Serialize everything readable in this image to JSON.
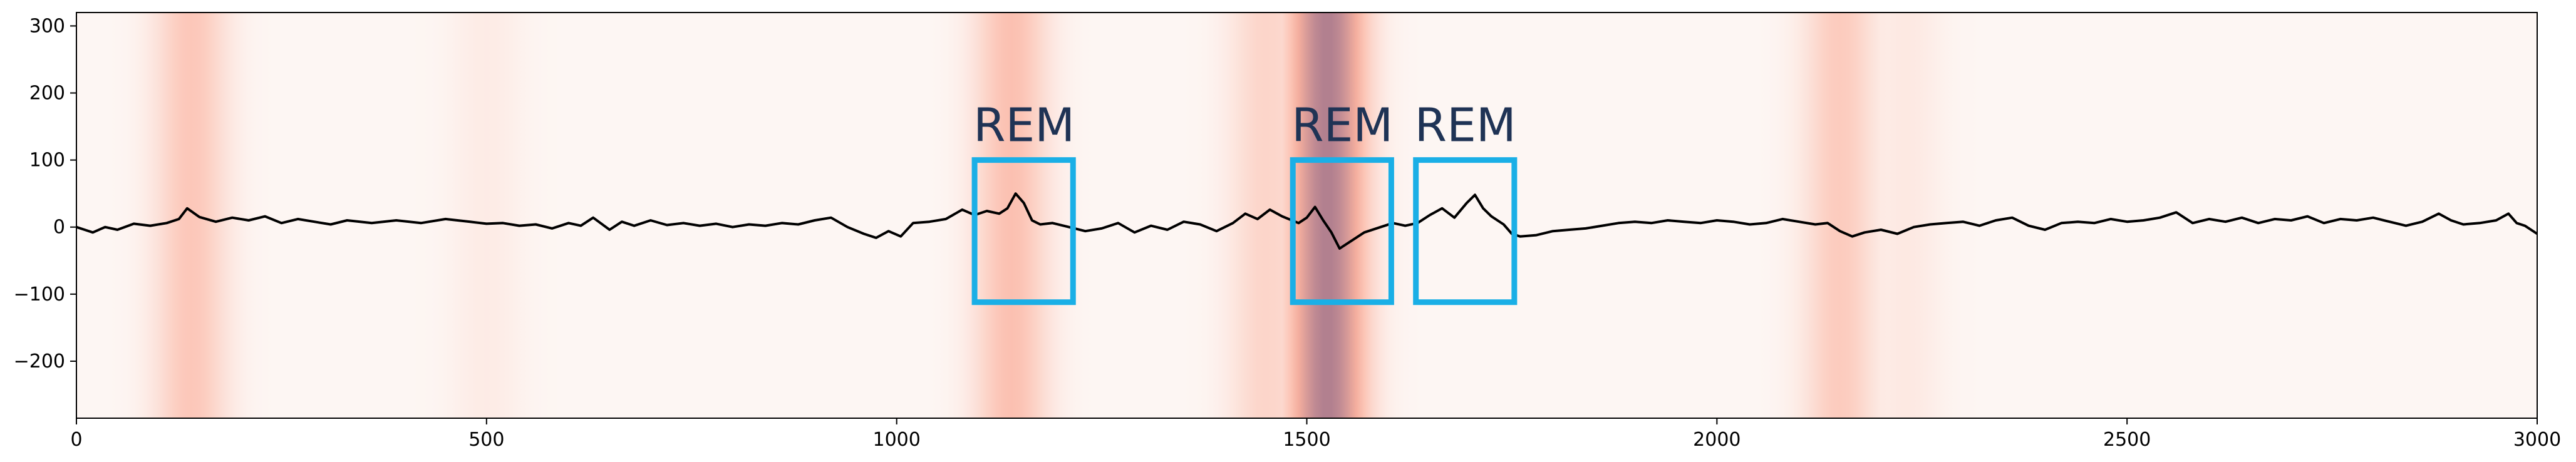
{
  "chart_data": {
    "type": "line",
    "title": "",
    "xlabel": "",
    "ylabel": "",
    "xlim": [
      0,
      3000
    ],
    "ylim": [
      -285,
      320
    ],
    "x_ticks": [
      0,
      500,
      1000,
      1500,
      2000,
      2500,
      3000
    ],
    "y_ticks": [
      300,
      200,
      100,
      0,
      -100,
      -200
    ],
    "grid": false,
    "colors": {
      "signal": "#000000",
      "box": "#1aafe6",
      "annotation_text": "#1f3355",
      "heat_base": "#fdf6f3",
      "heat_mid": "#fbb3a0",
      "heat_high": "#b07f8f"
    },
    "heatmap_background": {
      "colormap": "Reds",
      "bands": [
        {
          "x": 140,
          "intensity": 0.35
        },
        {
          "x": 500,
          "intensity": 0.08
        },
        {
          "x": 1140,
          "intensity": 0.4
        },
        {
          "x": 1450,
          "intensity": 0.25
        },
        {
          "x": 1525,
          "intensity": 1.0
        },
        {
          "x": 2150,
          "intensity": 0.32
        },
        {
          "x": 2230,
          "intensity": 0.1
        }
      ]
    },
    "series": [
      {
        "points": [
          [
            0,
            0
          ],
          [
            10,
            -4
          ],
          [
            20,
            -8
          ],
          [
            35,
            0
          ],
          [
            50,
            -4
          ],
          [
            70,
            5
          ],
          [
            90,
            2
          ],
          [
            110,
            6
          ],
          [
            125,
            12
          ],
          [
            135,
            28
          ],
          [
            150,
            15
          ],
          [
            170,
            8
          ],
          [
            190,
            14
          ],
          [
            210,
            10
          ],
          [
            230,
            16
          ],
          [
            250,
            6
          ],
          [
            270,
            12
          ],
          [
            290,
            8
          ],
          [
            310,
            4
          ],
          [
            330,
            10
          ],
          [
            360,
            6
          ],
          [
            390,
            10
          ],
          [
            420,
            6
          ],
          [
            450,
            12
          ],
          [
            480,
            8
          ],
          [
            500,
            5
          ],
          [
            520,
            6
          ],
          [
            540,
            2
          ],
          [
            560,
            4
          ],
          [
            580,
            -2
          ],
          [
            600,
            6
          ],
          [
            615,
            2
          ],
          [
            630,
            14
          ],
          [
            650,
            -4
          ],
          [
            665,
            8
          ],
          [
            680,
            2
          ],
          [
            700,
            10
          ],
          [
            720,
            3
          ],
          [
            740,
            6
          ],
          [
            760,
            2
          ],
          [
            780,
            5
          ],
          [
            800,
            0
          ],
          [
            820,
            4
          ],
          [
            840,
            2
          ],
          [
            860,
            6
          ],
          [
            880,
            4
          ],
          [
            900,
            10
          ],
          [
            920,
            14
          ],
          [
            940,
            0
          ],
          [
            960,
            -10
          ],
          [
            975,
            -16
          ],
          [
            990,
            -6
          ],
          [
            1005,
            -14
          ],
          [
            1020,
            6
          ],
          [
            1040,
            8
          ],
          [
            1060,
            12
          ],
          [
            1080,
            26
          ],
          [
            1095,
            18
          ],
          [
            1110,
            24
          ],
          [
            1125,
            20
          ],
          [
            1135,
            28
          ],
          [
            1145,
            50
          ],
          [
            1155,
            36
          ],
          [
            1165,
            10
          ],
          [
            1175,
            4
          ],
          [
            1190,
            6
          ],
          [
            1210,
            0
          ],
          [
            1230,
            -6
          ],
          [
            1250,
            -2
          ],
          [
            1270,
            6
          ],
          [
            1290,
            -8
          ],
          [
            1310,
            2
          ],
          [
            1330,
            -4
          ],
          [
            1350,
            8
          ],
          [
            1370,
            4
          ],
          [
            1390,
            -6
          ],
          [
            1410,
            6
          ],
          [
            1425,
            20
          ],
          [
            1440,
            12
          ],
          [
            1455,
            26
          ],
          [
            1470,
            16
          ],
          [
            1490,
            6
          ],
          [
            1500,
            14
          ],
          [
            1510,
            30
          ],
          [
            1520,
            10
          ],
          [
            1530,
            -8
          ],
          [
            1540,
            -32
          ],
          [
            1555,
            -20
          ],
          [
            1570,
            -8
          ],
          [
            1590,
            0
          ],
          [
            1605,
            6
          ],
          [
            1620,
            2
          ],
          [
            1635,
            6
          ],
          [
            1650,
            18
          ],
          [
            1665,
            28
          ],
          [
            1680,
            14
          ],
          [
            1695,
            36
          ],
          [
            1705,
            48
          ],
          [
            1715,
            28
          ],
          [
            1725,
            16
          ],
          [
            1740,
            4
          ],
          [
            1750,
            -10
          ],
          [
            1760,
            -14
          ],
          [
            1780,
            -12
          ],
          [
            1800,
            -6
          ],
          [
            1820,
            -4
          ],
          [
            1840,
            -2
          ],
          [
            1860,
            2
          ],
          [
            1880,
            6
          ],
          [
            1900,
            8
          ],
          [
            1920,
            6
          ],
          [
            1940,
            10
          ],
          [
            1960,
            8
          ],
          [
            1980,
            6
          ],
          [
            2000,
            10
          ],
          [
            2020,
            8
          ],
          [
            2040,
            4
          ],
          [
            2060,
            6
          ],
          [
            2080,
            12
          ],
          [
            2100,
            8
          ],
          [
            2120,
            4
          ],
          [
            2135,
            6
          ],
          [
            2150,
            -6
          ],
          [
            2165,
            -14
          ],
          [
            2180,
            -8
          ],
          [
            2200,
            -4
          ],
          [
            2220,
            -10
          ],
          [
            2240,
            0
          ],
          [
            2260,
            4
          ],
          [
            2280,
            6
          ],
          [
            2300,
            8
          ],
          [
            2320,
            2
          ],
          [
            2340,
            10
          ],
          [
            2360,
            14
          ],
          [
            2380,
            2
          ],
          [
            2400,
            -4
          ],
          [
            2420,
            6
          ],
          [
            2440,
            8
          ],
          [
            2460,
            6
          ],
          [
            2480,
            12
          ],
          [
            2500,
            8
          ],
          [
            2520,
            10
          ],
          [
            2540,
            14
          ],
          [
            2560,
            22
          ],
          [
            2580,
            6
          ],
          [
            2600,
            12
          ],
          [
            2620,
            8
          ],
          [
            2640,
            14
          ],
          [
            2660,
            6
          ],
          [
            2680,
            12
          ],
          [
            2700,
            10
          ],
          [
            2720,
            16
          ],
          [
            2740,
            6
          ],
          [
            2760,
            12
          ],
          [
            2780,
            10
          ],
          [
            2800,
            14
          ],
          [
            2820,
            8
          ],
          [
            2840,
            2
          ],
          [
            2860,
            8
          ],
          [
            2880,
            20
          ],
          [
            2895,
            10
          ],
          [
            2910,
            4
          ],
          [
            2930,
            6
          ],
          [
            2950,
            10
          ],
          [
            2965,
            20
          ],
          [
            2975,
            6
          ],
          [
            2985,
            2
          ],
          [
            3000,
            -10
          ]
        ]
      }
    ],
    "annotations": [
      {
        "label": "REM",
        "x0": 1095,
        "x1": 1215,
        "y0": -112,
        "y1": 100
      },
      {
        "label": "REM",
        "x0": 1483,
        "x1": 1603,
        "y0": -112,
        "y1": 100
      },
      {
        "label": "REM",
        "x0": 1633,
        "x1": 1753,
        "y0": -112,
        "y1": 100
      }
    ]
  }
}
